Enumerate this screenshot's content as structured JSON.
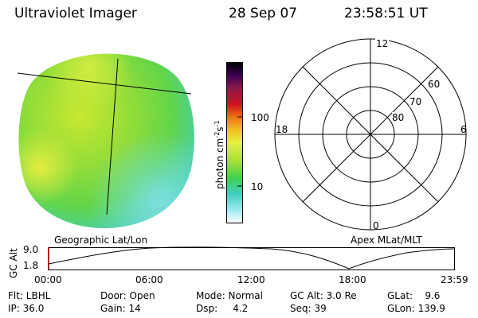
{
  "header": {
    "title": "Ultraviolet Imager",
    "date": "28 Sep 07",
    "time": "23:58:51 UT"
  },
  "colorbar": {
    "unit_label": "photon cm",
    "unit_sup1": "-2",
    "unit_s": "s",
    "unit_sup2": "-1",
    "ticks": [
      "100",
      "10"
    ],
    "colors": [
      "#000000",
      "#3a0050",
      "#8a1a4a",
      "#d01020",
      "#f07010",
      "#f0c020",
      "#e8f040",
      "#a0e030",
      "#40d050",
      "#40d0c0",
      "#a0e8f0",
      "#ffffff"
    ]
  },
  "image_panel": {
    "caption": "Geographic Lat/Lon"
  },
  "polar_plot": {
    "caption": "Apex MLat/MLT",
    "mlt_labels": [
      "12",
      "18",
      "6",
      "0"
    ],
    "lat_labels": [
      "60",
      "70",
      "80"
    ]
  },
  "altitude_plot": {
    "ylabel": "GC Alt",
    "y_ticks": [
      "9.0",
      "1.8"
    ],
    "x_ticks": [
      "00:00",
      "06:00",
      "12:00",
      "18:00",
      "23:59"
    ]
  },
  "info": {
    "flt": "Flt: LBHL",
    "ip": "IP: 36.0",
    "door": "Door: Open",
    "gain": "Gain: 14",
    "mode": "Mode: Normal",
    "dsp": "Dsp:     4.2",
    "gcalt": "GC Alt: 3.0 Re",
    "seq": "Seq: 39",
    "glat": "GLat:    9.6",
    "glon": "GLon: 139.9"
  }
}
